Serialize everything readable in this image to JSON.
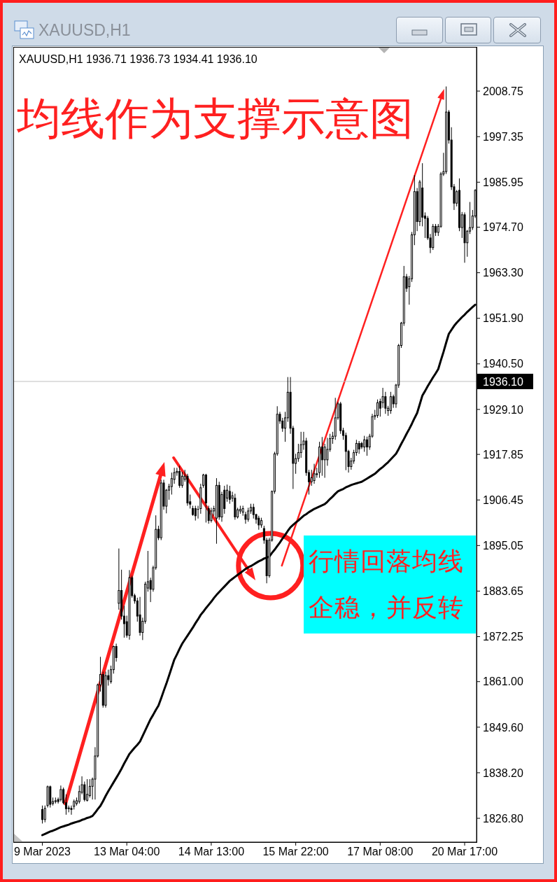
{
  "chart_data": {
    "type": "candlestick",
    "title": "均线作为支撑示意图",
    "subtitle": "XAUUSD,H1 1936.71 1936.73 1934.41 1936.10",
    "annotations": [
      "XAUUSD,H1",
      "行情回落均线企稳，并反转"
    ],
    "color": "#000000",
    "categories": [
      "9 Mar 2023",
      null,
      null,
      null,
      null,
      null,
      null,
      null,
      null,
      null,
      null,
      null,
      null,
      null,
      null,
      null,
      null,
      null,
      null,
      null,
      null,
      null,
      null,
      null,
      null,
      null,
      null,
      null,
      null,
      null,
      null,
      null,
      "13 Mar 04:00",
      null,
      null,
      null,
      null,
      null,
      null,
      null,
      null,
      null,
      null,
      null,
      null,
      null,
      null,
      null,
      null,
      null,
      null,
      null,
      null,
      null,
      null,
      null,
      null,
      null,
      null,
      null,
      null,
      null,
      null,
      null,
      "14 Mar 13:00",
      null,
      null,
      null,
      null,
      null,
      null,
      null,
      null,
      null,
      null,
      null,
      null,
      null,
      null,
      null,
      null,
      null,
      null,
      null,
      null,
      null,
      null,
      null,
      null,
      null,
      null,
      null,
      null,
      null,
      null,
      null,
      "15 Mar 22:00",
      null,
      null,
      null,
      null,
      null,
      null,
      null,
      null,
      null,
      null,
      null,
      null,
      null,
      null,
      null,
      null,
      null,
      null,
      null,
      null,
      null,
      null,
      null,
      null,
      null,
      null,
      null,
      null,
      null,
      null,
      null,
      "17 Mar 08:00",
      null,
      null,
      null,
      null,
      null,
      null,
      null,
      null,
      null,
      null,
      null,
      null,
      null,
      null,
      null,
      null,
      null,
      null,
      null,
      null,
      null,
      null,
      null,
      null,
      null,
      null,
      null,
      null,
      null,
      null,
      null,
      "20 Mar 17:00",
      null,
      null,
      null,
      null
    ],
    "ohlc": [
      [
        1829,
        1830,
        1825.5,
        1826.5
      ],
      [
        1826.5,
        1830,
        1825.8,
        1829.3
      ],
      [
        1830,
        1835,
        1829.5,
        1834.7
      ],
      [
        1834.7,
        1835,
        1829.5,
        1830.3
      ],
      [
        1830.5,
        1832,
        1830,
        1831
      ],
      [
        1831,
        1832,
        1830.5,
        1831.2
      ],
      [
        1831.5,
        1832,
        1830.5,
        1831
      ],
      [
        1831.5,
        1835,
        1831,
        1834
      ],
      [
        1834,
        1834.5,
        1830.3,
        1830.7
      ],
      [
        1830.7,
        1832.8,
        1827.7,
        1829.2
      ],
      [
        1829.2,
        1830,
        1828.3,
        1829.4
      ],
      [
        1829.3,
        1830,
        1827.7,
        1829
      ],
      [
        1829.8,
        1831.5,
        1829,
        1831
      ],
      [
        1830.5,
        1832,
        1830,
        1831.2
      ],
      [
        1831,
        1835,
        1830.5,
        1833.5
      ],
      [
        1833.3,
        1837.3,
        1832.8,
        1835.2
      ],
      [
        1835.2,
        1836,
        1831,
        1831.5
      ],
      [
        1831.3,
        1836.6,
        1831,
        1832.8
      ],
      [
        1832.5,
        1836.6,
        1832,
        1834.8
      ],
      [
        1834.8,
        1837,
        1831.5,
        1836.6
      ],
      [
        1836.6,
        1844.6,
        1831.5,
        1842.4
      ],
      [
        1842.4,
        1860.5,
        1842,
        1860.2
      ],
      [
        1860.2,
        1867.2,
        1858.5,
        1862.8
      ],
      [
        1862.8,
        1863.5,
        1854.5,
        1855.1
      ],
      [
        1855.1,
        1863.5,
        1854.5,
        1862.5
      ],
      [
        1862.5,
        1864,
        1860,
        1861.5
      ],
      [
        1861,
        1865,
        1860.5,
        1864
      ],
      [
        1864,
        1870,
        1863,
        1869.8
      ],
      [
        1869.8,
        1870.5,
        1866,
        1867
      ],
      [
        1880.6,
        1894.3,
        1879,
        1883.8
      ],
      [
        1883.8,
        1889,
        1876.5,
        1877.4
      ],
      [
        1877.4,
        1880,
        1872,
        1875.5
      ],
      [
        1876,
        1877.5,
        1872,
        1872.6
      ],
      [
        1872.6,
        1888.9,
        1871.5,
        1887
      ],
      [
        1887,
        1887.5,
        1882,
        1882.5
      ],
      [
        1882.5,
        1883,
        1880.5,
        1881.2
      ],
      [
        1881.2,
        1882,
        1876,
        1877.4
      ],
      [
        1877.7,
        1882.2,
        1872.5,
        1873.3
      ],
      [
        1873.3,
        1877,
        1871.4,
        1876.1
      ],
      [
        1876.1,
        1886,
        1875.5,
        1885.4
      ],
      [
        1884.4,
        1893.7,
        1883.5,
        1886
      ],
      [
        1886.3,
        1887,
        1880.9,
        1884.1
      ],
      [
        1884.1,
        1890,
        1883.5,
        1889.5
      ],
      [
        1889.5,
        1902.6,
        1889,
        1899.1
      ],
      [
        1899.1,
        1900,
        1896.4,
        1897
      ],
      [
        1897,
        1911.5,
        1896.4,
        1910.7
      ],
      [
        1910.7,
        1911.5,
        1904,
        1904.9
      ],
      [
        1904.9,
        1909.2,
        1903.1,
        1908.9
      ],
      [
        1908.9,
        1910.5,
        1906.5,
        1909.8
      ],
      [
        1909.8,
        1913.3,
        1907.8,
        1911.8
      ],
      [
        1911.6,
        1914.5,
        1910.5,
        1913.3
      ],
      [
        1913.3,
        1914.5,
        1912.5,
        1913.6
      ],
      [
        1913.6,
        1915,
        1909.5,
        1910.1
      ],
      [
        1910.1,
        1913.5,
        1909.5,
        1912.4
      ],
      [
        1911.6,
        1914,
        1911,
        1912.4
      ],
      [
        1912.4,
        1913,
        1905,
        1905.7
      ],
      [
        1906,
        1907.8,
        1904.3,
        1905.4
      ],
      [
        1904.3,
        1905,
        1902.5,
        1902.8
      ],
      [
        1904.3,
        1905,
        1901.3,
        1902.5
      ],
      [
        1904,
        1905,
        1901.8,
        1904.1
      ],
      [
        1904.3,
        1910.5,
        1903,
        1909.5
      ],
      [
        1910.1,
        1913,
        1909.5,
        1912.7
      ],
      [
        1912.7,
        1913,
        1900.8,
        1905.7
      ],
      [
        1904.3,
        1905,
        1900.5,
        1901.3
      ],
      [
        1901.3,
        1904.5,
        1900.8,
        1903.7
      ],
      [
        1903.7,
        1905,
        1902.5,
        1904.3
      ],
      [
        1901.9,
        1911.9,
        1895.5,
        1910.1
      ],
      [
        1910.1,
        1911,
        1901.5,
        1902.2
      ],
      [
        1902.2,
        1908.5,
        1901,
        1907.8
      ],
      [
        1908.9,
        1910,
        1903,
        1904.3
      ],
      [
        1906.9,
        1910.3,
        1906,
        1908.9
      ],
      [
        1908.6,
        1910,
        1905.5,
        1906.6
      ],
      [
        1906.9,
        1908.5,
        1906,
        1907.5
      ],
      [
        1906.9,
        1908,
        1901.5,
        1902.2
      ],
      [
        1902.2,
        1904.5,
        1901.8,
        1904
      ],
      [
        1903.7,
        1905,
        1903,
        1904.1
      ],
      [
        1903.4,
        1905,
        1902.5,
        1904.3
      ],
      [
        1902.8,
        1903.5,
        1900.5,
        1901.6
      ],
      [
        1901.6,
        1904.5,
        1901,
        1903.7
      ],
      [
        1903.7,
        1905.5,
        1903,
        1904.6
      ],
      [
        1904.6,
        1905.5,
        1901.8,
        1902.8
      ],
      [
        1902.8,
        1903,
        1900.5,
        1901.6
      ],
      [
        1901.9,
        1902.5,
        1899,
        1900.2
      ],
      [
        1900.2,
        1902,
        1899.5,
        1901.3
      ],
      [
        1899.3,
        1900,
        1895.5,
        1896.4
      ],
      [
        1896.4,
        1897,
        1885.6,
        1887.5
      ],
      [
        1887.5,
        1897,
        1887,
        1896.4
      ],
      [
        1896.4,
        1908.8,
        1896,
        1908.6
      ],
      [
        1908.6,
        1918.5,
        1908,
        1918
      ],
      [
        1918,
        1929.9,
        1917.5,
        1927.9
      ],
      [
        1927.9,
        1928.5,
        1925.5,
        1926.2
      ],
      [
        1926.2,
        1927,
        1923.5,
        1924.4
      ],
      [
        1924.4,
        1928.5,
        1921,
        1927
      ],
      [
        1927,
        1937.2,
        1926,
        1933.4
      ],
      [
        1933.4,
        1937.2,
        1923,
        1924.4
      ],
      [
        1924.4,
        1925,
        1909.2,
        1915.6
      ],
      [
        1915.6,
        1918,
        1913,
        1916.8
      ],
      [
        1916.8,
        1920.5,
        1916,
        1918.3
      ],
      [
        1918.3,
        1923.5,
        1917,
        1920.3
      ],
      [
        1920.3,
        1923.5,
        1919,
        1921.2
      ],
      [
        1921.2,
        1922,
        1912.5,
        1913.3
      ],
      [
        1913.3,
        1914,
        1907.8,
        1911
      ],
      [
        1911,
        1914,
        1910,
        1912
      ],
      [
        1911.3,
        1915.5,
        1910.5,
        1913
      ],
      [
        1913,
        1914.5,
        1912,
        1912.8
      ],
      [
        1913.3,
        1921,
        1912,
        1919.7
      ],
      [
        1919.7,
        1922.2,
        1912.5,
        1916.5
      ],
      [
        1916.5,
        1920.5,
        1912,
        1919.7
      ],
      [
        1916.5,
        1922,
        1915,
        1919.1
      ],
      [
        1919.1,
        1923,
        1918.5,
        1921.8
      ],
      [
        1921.8,
        1923.5,
        1920.5,
        1922.4
      ],
      [
        1922.4,
        1932,
        1921.5,
        1927
      ],
      [
        1927,
        1931,
        1926.5,
        1930.5
      ],
      [
        1930.5,
        1931,
        1923,
        1923.8
      ],
      [
        1923.8,
        1924.5,
        1921.5,
        1922.6
      ],
      [
        1922.6,
        1923.3,
        1913.9,
        1918.6
      ],
      [
        1918.6,
        1919,
        1913.3,
        1914.8
      ],
      [
        1914.8,
        1917,
        1914,
        1916.2
      ],
      [
        1916.2,
        1919,
        1915.5,
        1918.3
      ],
      [
        1918.3,
        1921.5,
        1917.5,
        1920.6
      ],
      [
        1920.6,
        1921.2,
        1918,
        1919.2
      ],
      [
        1920.6,
        1921,
        1919.2,
        1919.7
      ],
      [
        1919.7,
        1922.5,
        1918.5,
        1921.5
      ],
      [
        1921.5,
        1922.3,
        1917.5,
        1919.7
      ],
      [
        1919.7,
        1923,
        1919,
        1922.4
      ],
      [
        1922.4,
        1928,
        1922,
        1927.3
      ],
      [
        1927.3,
        1929,
        1926.5,
        1927.6
      ],
      [
        1927.6,
        1931.6,
        1927,
        1930.8
      ],
      [
        1931.1,
        1931.8,
        1927.3,
        1929.4
      ],
      [
        1930.8,
        1934.5,
        1929.5,
        1932.3
      ],
      [
        1932.3,
        1933.5,
        1928,
        1929.4
      ],
      [
        1928.8,
        1930,
        1927.5,
        1929.4
      ],
      [
        1928.8,
        1933.5,
        1928,
        1932.3
      ],
      [
        1932.3,
        1932.8,
        1929.5,
        1930.5
      ],
      [
        1930.5,
        1935.5,
        1929.5,
        1935.2
      ],
      [
        1935.2,
        1945.5,
        1934.5,
        1945.1
      ],
      [
        1945.1,
        1951,
        1944.5,
        1950.7
      ],
      [
        1950.7,
        1965,
        1950,
        1962.3
      ],
      [
        1962.3,
        1963,
        1958.5,
        1959.4
      ],
      [
        1959.8,
        1962.5,
        1955.3,
        1961.8
      ],
      [
        1961.8,
        1973.5,
        1961,
        1972.8
      ],
      [
        1972.8,
        1987.7,
        1970.2,
        1983.6
      ],
      [
        1983.6,
        1984.5,
        1973.7,
        1976.1
      ],
      [
        1976.1,
        1986.5,
        1975,
        1986
      ],
      [
        1984.5,
        1990.7,
        1974.9,
        1977.2
      ],
      [
        1977.5,
        1978.4,
        1972,
        1976.9
      ],
      [
        1976.9,
        1977.5,
        1971.5,
        1972
      ],
      [
        1972,
        1973,
        1968.2,
        1969.6
      ],
      [
        1969.6,
        1975.5,
        1969,
        1974.9
      ],
      [
        1974.9,
        1975.5,
        1972.5,
        1973.4
      ],
      [
        1973.4,
        1975.5,
        1972.5,
        1974.9
      ],
      [
        1974.9,
        1988.5,
        1974.5,
        1988
      ],
      [
        1988,
        1993.3,
        1987.5,
        1988.6
      ],
      [
        1988.6,
        2009.9,
        1988,
        2003.5
      ],
      [
        2003.5,
        2004,
        1995.6,
        1996.5
      ],
      [
        1996.5,
        1999.7,
        1984,
        1984.8
      ],
      [
        1984.8,
        1985.5,
        1979,
        1980.7
      ],
      [
        1980.7,
        1984,
        1979.9,
        1983.6
      ],
      [
        1983.9,
        1986.9,
        1973.7,
        1974.6
      ],
      [
        1974.6,
        1978.5,
        1972,
        1977.8
      ],
      [
        1977.8,
        1978.4,
        1965.8,
        1970.8
      ],
      [
        1970.8,
        1974,
        1967.3,
        1973.7
      ],
      [
        1973.7,
        1981,
        1973,
        1974.6
      ],
      [
        1974.6,
        1979,
        1974,
        1977.5
      ],
      [
        1977.5,
        1984.2,
        1977,
        1983.9
      ]
    ],
    "series": [
      {
        "type": "line",
        "color": "#000000",
        "values": [
          1822.6,
          1822.9,
          1823.2,
          1823.5,
          1823.7,
          1824,
          1824.3,
          1824.6,
          1824.8,
          1825,
          1825.2,
          1825.5,
          1825.7,
          1825.9,
          1826.1,
          1826.4,
          1826.6,
          1826.9,
          1827.1,
          1827.4,
          1828.2,
          1829.1,
          1829.9,
          1831.1,
          1832.4,
          1833.6,
          1834.7,
          1835.8,
          1836.9,
          1838,
          1839.2,
          1840.5,
          1841.7,
          1842.9,
          1843.7,
          1844.5,
          1845.2,
          1846,
          1847.4,
          1848.8,
          1850.2,
          1851.6,
          1852.7,
          1853.9,
          1855,
          1856.8,
          1858.7,
          1860.5,
          1862.5,
          1864.5,
          1866.5,
          1867.8,
          1869.2,
          1870.5,
          1871.5,
          1872.5,
          1873.5,
          1874.5,
          1875.6,
          1876.6,
          1877.7,
          1878.5,
          1879.4,
          1880.2,
          1881,
          1881.9,
          1882.7,
          1883.4,
          1884.1,
          1884.8,
          1885.5,
          1886.2,
          1886.7,
          1887.2,
          1887.7,
          1888.2,
          1888.7,
          1889.2,
          1889.6,
          1889.9,
          1890.3,
          1890.7,
          1891.1,
          1891.4,
          1891.8,
          1892,
          1892.3,
          1893.2,
          1894,
          1894.9,
          1895.8,
          1896.8,
          1897.7,
          1898.7,
          1899.6,
          1900.2,
          1900.8,
          1901.3,
          1901.9,
          1902.5,
          1902.9,
          1903.4,
          1903.8,
          1904.2,
          1904.5,
          1904.8,
          1905.1,
          1905.4,
          1906,
          1906.7,
          1907.3,
          1908,
          1908.6,
          1908.9,
          1909.2,
          1909.6,
          1909.9,
          1910.2,
          1910.4,
          1910.6,
          1910.8,
          1911,
          1911.4,
          1911.8,
          1912.2,
          1912.6,
          1913,
          1913.6,
          1914.2,
          1914.7,
          1915.3,
          1915.9,
          1916.6,
          1917.3,
          1918,
          1919.2,
          1920.5,
          1921.7,
          1923,
          1924.2,
          1925.5,
          1926.9,
          1928.2,
          1930.4,
          1932.6,
          1933.7,
          1934.9,
          1936,
          1937.1,
          1938.1,
          1939.2,
          1941.4,
          1943.5,
          1945.8,
          1948,
          1949,
          1950,
          1950.8,
          1951.5,
          1952.2,
          1952.8,
          1953.5,
          1954.1,
          1954.7,
          1955.3
        ]
      }
    ],
    "ylim": [
      1820.85,
      2019.8
    ],
    "yticks": [
      {
        "value": 1826.8,
        "label": "1826.80"
      },
      {
        "value": 1838.2,
        "label": "1838.20"
      },
      {
        "value": 1849.6,
        "label": "1849.60"
      },
      {
        "value": 1861,
        "label": "1861.00"
      },
      1872.25,
      1883.65,
      1895.05,
      1906.45,
      1917.85,
      {
        "value": 1929.1,
        "label": "1929.10"
      },
      {
        "value": 1940.5,
        "label": "1940.50"
      },
      {
        "value": 1951.9,
        "label": "1951.90"
      },
      {
        "value": 1963.3,
        "label": "1963.30"
      },
      {
        "value": 1974.7,
        "label": "1974.70"
      },
      1985.95,
      1997.35,
      2008.75
    ],
    "ref_lines": [
      {
        "axis": "y",
        "value": 1936.1,
        "label": "1936.10",
        "color": "#c0c0c0"
      }
    ]
  }
}
